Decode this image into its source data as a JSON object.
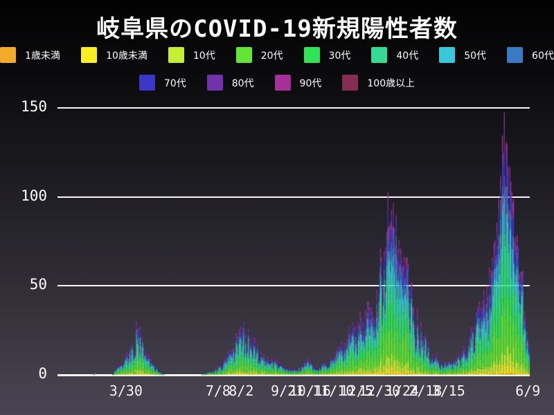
{
  "title": "岐阜県のCOVID-19新規陽性者数",
  "colors": {
    "background_top": "#020202",
    "background_bottom": "#4a4552",
    "grid": "#ffffff",
    "text": "#ffffff"
  },
  "legend": {
    "rows": [
      8,
      4
    ]
  },
  "chart_data": {
    "type": "bar",
    "stacked": true,
    "title": "岐阜県のCOVID-19新規陽性者数",
    "xlabel": "",
    "ylabel": "",
    "ylim": [
      0,
      150
    ],
    "yticks": [
      0,
      50,
      100,
      150
    ],
    "grid": true,
    "legend_position": "top",
    "series": [
      {
        "name": "1歳未満",
        "color": "#f3a929",
        "share": 0.005
      },
      {
        "name": "10歳未満",
        "color": "#f8ee26",
        "share": 0.03
      },
      {
        "name": "10代",
        "color": "#c6ee34",
        "share": 0.06
      },
      {
        "name": "20代",
        "color": "#64e434",
        "share": 0.19
      },
      {
        "name": "30代",
        "color": "#31e357",
        "share": 0.15
      },
      {
        "name": "40代",
        "color": "#33db97",
        "share": 0.15
      },
      {
        "name": "50代",
        "color": "#38c7db",
        "share": 0.13
      },
      {
        "name": "60代",
        "color": "#3b79c4",
        "share": 0.09
      },
      {
        "name": "70代",
        "color": "#3c36c6",
        "share": 0.08
      },
      {
        "name": "80代",
        "color": "#7132ab",
        "share": 0.06
      },
      {
        "name": "90代",
        "color": "#a53198",
        "share": 0.04
      },
      {
        "name": "100歳以上",
        "color": "#872d54",
        "share": 0.006
      }
    ],
    "xticks": [
      {
        "label": "3/30",
        "f": 0.145
      },
      {
        "label": "7/8",
        "f": 0.34
      },
      {
        "label": "8/2",
        "f": 0.389
      },
      {
        "label": "9/21",
        "f": 0.487
      },
      {
        "label": "10/16",
        "f": 0.535
      },
      {
        "label": "11/10",
        "f": 0.584
      },
      {
        "label": "12/5",
        "f": 0.633
      },
      {
        "label": "12/30",
        "f": 0.682
      },
      {
        "label": "1/24",
        "f": 0.73
      },
      {
        "label": "2/18",
        "f": 0.779
      },
      {
        "label": "3/15",
        "f": 0.828
      },
      {
        "label": "6/9",
        "f": 0.996
      }
    ],
    "days": 511,
    "daily_total_envelope": [
      [
        0,
        0
      ],
      [
        38,
        0
      ],
      [
        40,
        2
      ],
      [
        41,
        0
      ],
      [
        58,
        0
      ],
      [
        62,
        3
      ],
      [
        68,
        6
      ],
      [
        74,
        12
      ],
      [
        80,
        18
      ],
      [
        86,
        25
      ],
      [
        92,
        20
      ],
      [
        98,
        12
      ],
      [
        104,
        6
      ],
      [
        110,
        2
      ],
      [
        114,
        1
      ],
      [
        118,
        0
      ],
      [
        154,
        0
      ],
      [
        158,
        1
      ],
      [
        164,
        2
      ],
      [
        170,
        3
      ],
      [
        176,
        6
      ],
      [
        182,
        10
      ],
      [
        188,
        14
      ],
      [
        194,
        22
      ],
      [
        198,
        27
      ],
      [
        203,
        23
      ],
      [
        209,
        19
      ],
      [
        215,
        15
      ],
      [
        223,
        12
      ],
      [
        231,
        9
      ],
      [
        241,
        6
      ],
      [
        251,
        4
      ],
      [
        259,
        3
      ],
      [
        265,
        5
      ],
      [
        271,
        9
      ],
      [
        276,
        4
      ],
      [
        283,
        5
      ],
      [
        289,
        7
      ],
      [
        296,
        9
      ],
      [
        303,
        13
      ],
      [
        310,
        18
      ],
      [
        318,
        24
      ],
      [
        326,
        28
      ],
      [
        334,
        32
      ],
      [
        340,
        36
      ],
      [
        345,
        48
      ],
      [
        348,
        58
      ],
      [
        352,
        50
      ],
      [
        355,
        72
      ],
      [
        357,
        103
      ],
      [
        359,
        84
      ],
      [
        361,
        93
      ],
      [
        363,
        97
      ],
      [
        366,
        90
      ],
      [
        369,
        76
      ],
      [
        372,
        65
      ],
      [
        376,
        55
      ],
      [
        380,
        48
      ],
      [
        385,
        38
      ],
      [
        390,
        28
      ],
      [
        395,
        22
      ],
      [
        400,
        16
      ],
      [
        405,
        12
      ],
      [
        412,
        8
      ],
      [
        420,
        6
      ],
      [
        428,
        8
      ],
      [
        434,
        11
      ],
      [
        440,
        15
      ],
      [
        446,
        20
      ],
      [
        452,
        28
      ],
      [
        458,
        38
      ],
      [
        464,
        50
      ],
      [
        470,
        66
      ],
      [
        475,
        86
      ],
      [
        479,
        112
      ],
      [
        483,
        148
      ],
      [
        486,
        130
      ],
      [
        489,
        117
      ],
      [
        493,
        99
      ],
      [
        497,
        79
      ],
      [
        501,
        58
      ],
      [
        505,
        36
      ],
      [
        508,
        24
      ],
      [
        510,
        16
      ]
    ],
    "noise": {
      "seed": 987241,
      "min": 0.55,
      "span": 0.75,
      "high_threshold": 60,
      "high_min": 0.72,
      "high_span": 0.33,
      "cap": 149,
      "share_jitter_min": 0.35,
      "share_jitter_span": 1.3
    }
  }
}
